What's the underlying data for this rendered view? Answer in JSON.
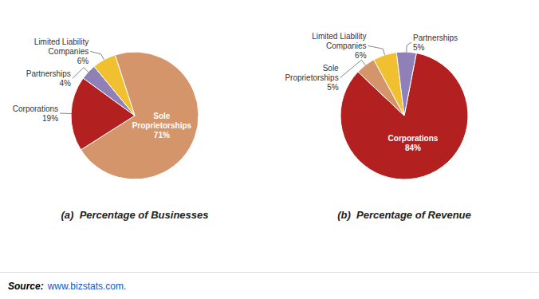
{
  "chart_data": [
    {
      "type": "pie",
      "title": "(a)  Percentage of Businesses",
      "categories": [
        "Sole\nProprietorships",
        "Corporations",
        "Partnerships",
        "Limited Liability\nCompanies"
      ],
      "values": [
        71,
        19,
        4,
        6
      ],
      "value_labels": [
        "71%",
        "19%",
        "4%",
        "6%"
      ],
      "colors": [
        "#D4956A",
        "#B22020",
        "#9080B8",
        "#F0C030"
      ],
      "data_labels": true
    },
    {
      "type": "pie",
      "title": "(b)  Percentage of Revenue",
      "categories": [
        "Corporations",
        "Sole\nProprietorships",
        "Limited Liability\nCompanies",
        "Partnerships"
      ],
      "values": [
        84,
        5,
        6,
        5
      ],
      "value_labels": [
        "84%",
        "5%",
        "6%",
        "5%"
      ],
      "colors": [
        "#B22020",
        "#D4956A",
        "#F0C030",
        "#9080B8"
      ],
      "data_labels": true
    }
  ],
  "annotations": [
    {
      "text": "Source:"
    },
    {
      "text": "www.bizstats.com.",
      "color": "#1155CC"
    }
  ]
}
